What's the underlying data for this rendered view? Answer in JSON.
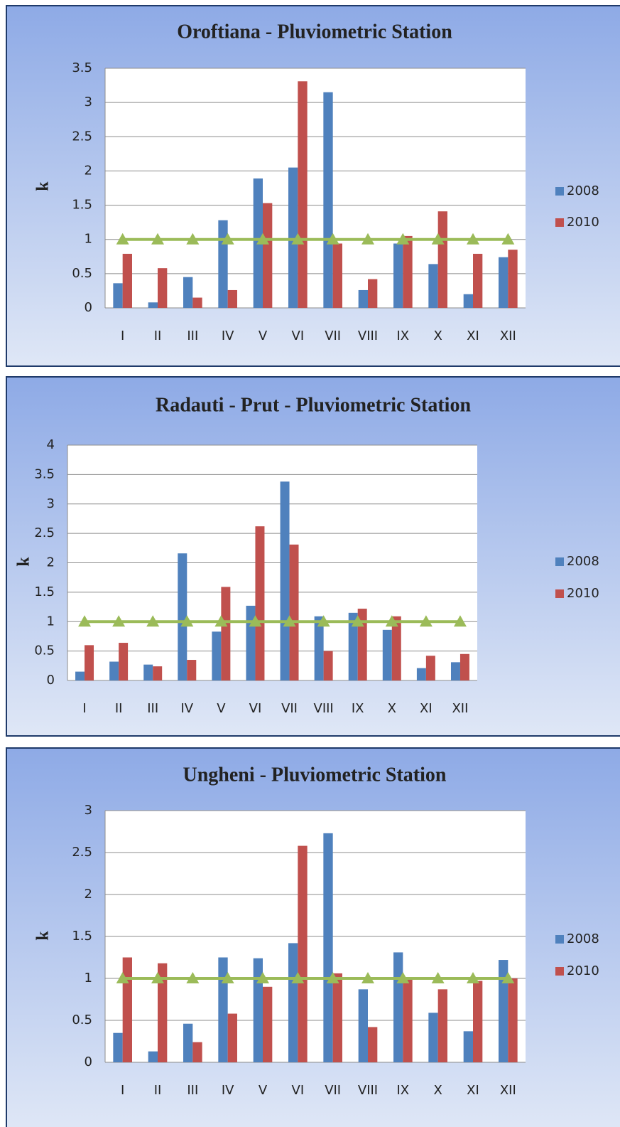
{
  "chart_data": [
    {
      "type": "bar",
      "title": "Oroftiana - Pluviometric Station",
      "y_label": "k",
      "categories": [
        "I",
        "II",
        "III",
        "IV",
        "V",
        "VI",
        "VII",
        "VIII",
        "IX",
        "X",
        "XI",
        "XII"
      ],
      "series": [
        {
          "name": "2008",
          "color": "#4f81bd",
          "values": [
            0.36,
            0.08,
            0.45,
            1.28,
            1.89,
            2.05,
            3.15,
            0.26,
            0.94,
            0.64,
            0.2,
            0.74
          ]
        },
        {
          "name": "2010",
          "color": "#c0504d",
          "values": [
            0.79,
            0.58,
            0.15,
            0.26,
            1.53,
            3.31,
            0.94,
            0.42,
            1.05,
            1.41,
            0.79,
            0.85
          ]
        }
      ],
      "line_series": {
        "color": "#9bbb59",
        "values": [
          1,
          1,
          1,
          1,
          1,
          1,
          1,
          1,
          1,
          1,
          1,
          1
        ]
      },
      "ylim": [
        0,
        3.5
      ],
      "yticks": [
        0,
        0.5,
        1,
        1.5,
        2,
        2.5,
        3,
        3.5
      ],
      "grid": true
    },
    {
      "type": "bar",
      "title": "Radauti - Prut - Pluviometric Station",
      "y_label": "k",
      "categories": [
        "I",
        "II",
        "III",
        "IV",
        "V",
        "VI",
        "VII",
        "VIII",
        "IX",
        "X",
        "XI",
        "XII"
      ],
      "series": [
        {
          "name": "2008",
          "color": "#4f81bd",
          "values": [
            0.15,
            0.32,
            0.27,
            2.16,
            0.83,
            1.27,
            3.38,
            1.09,
            1.15,
            0.86,
            0.21,
            0.31
          ]
        },
        {
          "name": "2010",
          "color": "#c0504d",
          "values": [
            0.6,
            0.64,
            0.24,
            0.35,
            1.59,
            2.62,
            2.31,
            0.5,
            1.22,
            1.09,
            0.42,
            0.45
          ]
        }
      ],
      "line_series": {
        "color": "#9bbb59",
        "values": [
          1,
          1,
          1,
          1,
          1,
          1,
          1,
          1,
          1,
          1,
          1,
          1
        ]
      },
      "ylim": [
        0,
        4
      ],
      "yticks": [
        0,
        0.5,
        1,
        1.5,
        2,
        2.5,
        3,
        3.5,
        4
      ],
      "grid": true
    },
    {
      "type": "bar",
      "title": "Ungheni - Pluviometric Station",
      "y_label": "k",
      "categories": [
        "I",
        "II",
        "III",
        "IV",
        "V",
        "VI",
        "VII",
        "VIII",
        "IX",
        "X",
        "XI",
        "XII"
      ],
      "series": [
        {
          "name": "2008",
          "color": "#4f81bd",
          "values": [
            0.35,
            0.13,
            0.46,
            1.25,
            1.24,
            1.42,
            2.73,
            0.87,
            1.31,
            0.59,
            0.37,
            1.22
          ]
        },
        {
          "name": "2010",
          "color": "#c0504d",
          "values": [
            1.25,
            1.18,
            0.24,
            0.58,
            0.9,
            2.58,
            1.06,
            0.42,
            0.99,
            0.87,
            0.97,
            1.0
          ]
        }
      ],
      "line_series": {
        "color": "#9bbb59",
        "values": [
          1,
          1,
          1,
          1,
          1,
          1,
          1,
          1,
          1,
          1,
          1,
          1
        ]
      },
      "ylim": [
        0,
        3
      ],
      "yticks": [
        0,
        0.5,
        1,
        1.5,
        2,
        2.5,
        3
      ],
      "grid": true
    }
  ]
}
